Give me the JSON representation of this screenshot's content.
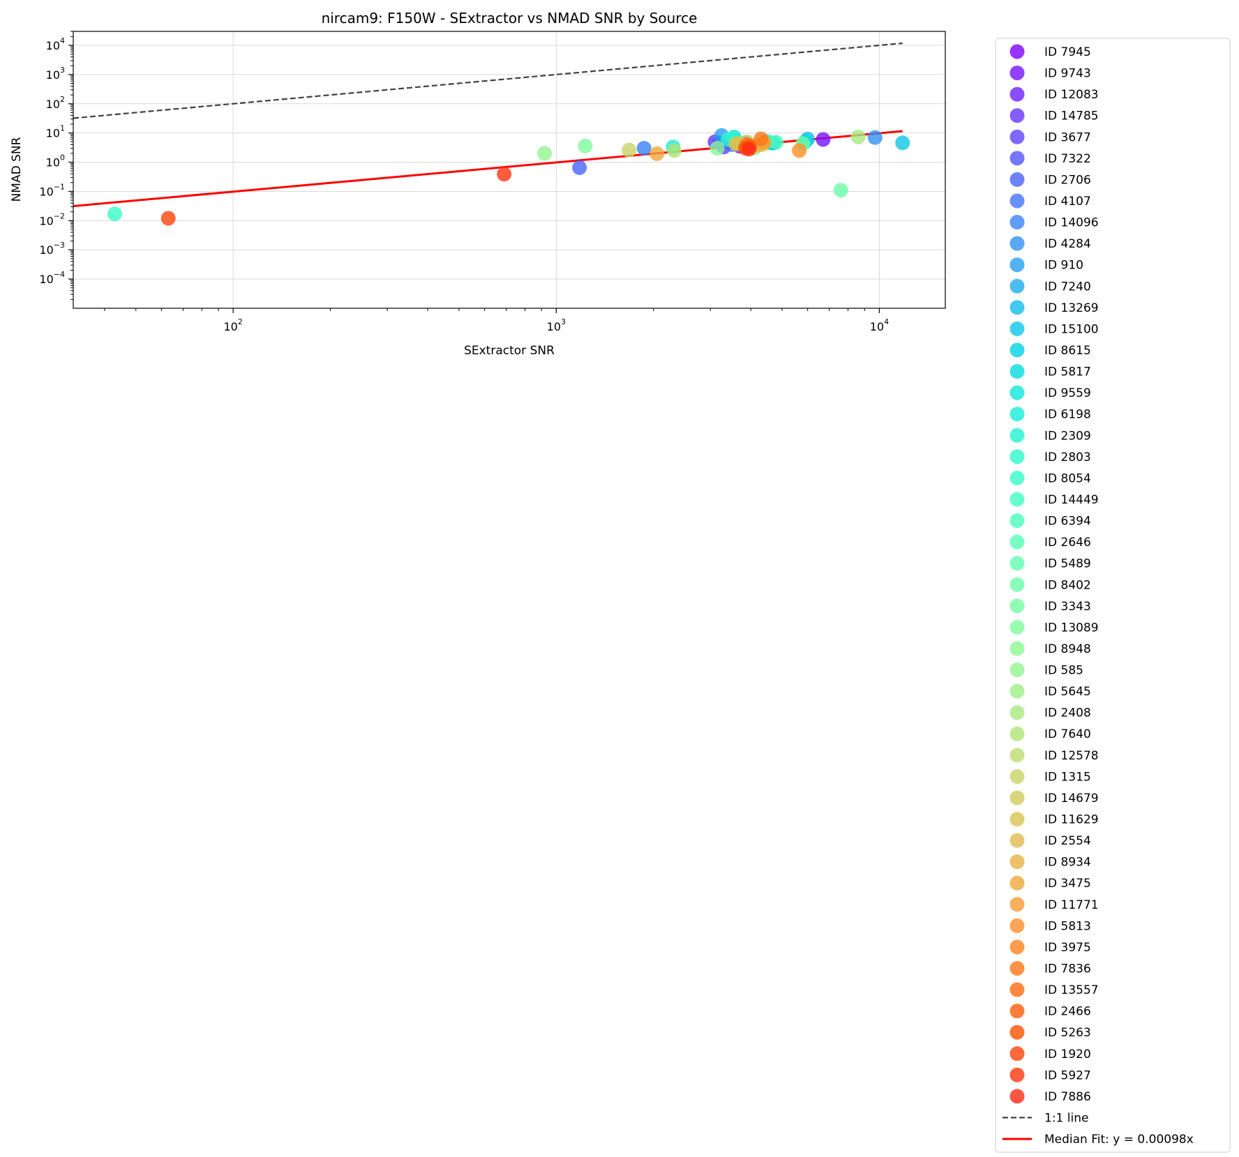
{
  "chart_data": {
    "type": "scatter",
    "title": "nircam9: F150W - SExtractor vs NMAD SNR by Source",
    "xlabel": "SExtractor SNR",
    "ylabel": "NMAD SNR",
    "x_scale": "log",
    "y_scale": "log",
    "xlim": [
      32,
      16000
    ],
    "ylim": [
      1e-05,
      30000
    ],
    "x_ticks": [
      {
        "value": 100,
        "base": "10",
        "exp": "2"
      },
      {
        "value": 1000,
        "base": "10",
        "exp": "3"
      },
      {
        "value": 10000,
        "base": "10",
        "exp": "4"
      }
    ],
    "y_ticks": [
      {
        "value": 0.0001,
        "base": "10",
        "exp": "−4"
      },
      {
        "value": 0.001,
        "base": "10",
        "exp": "−3"
      },
      {
        "value": 0.01,
        "base": "10",
        "exp": "−2"
      },
      {
        "value": 0.1,
        "base": "10",
        "exp": "−1"
      },
      {
        "value": 1,
        "base": "10",
        "exp": "0"
      },
      {
        "value": 10,
        "base": "10",
        "exp": "1"
      },
      {
        "value": 100,
        "base": "10",
        "exp": "2"
      },
      {
        "value": 1000,
        "base": "10",
        "exp": "3"
      },
      {
        "value": 10000,
        "base": "10",
        "exp": "4"
      }
    ],
    "grid": true,
    "legend_position": "outside right",
    "series": [
      {
        "name": "ID 7945",
        "color": "#8000ff",
        "x": 3850,
        "y": 4.5
      },
      {
        "name": "ID 9743",
        "color": "#7711ff",
        "x": 6700,
        "y": 6.0
      },
      {
        "name": "ID 12083",
        "color": "#6e22fe",
        "x": 3700,
        "y": 3.5
      },
      {
        "name": "ID 14785",
        "color": "#6633fe",
        "x": 3100,
        "y": 5.0
      },
      {
        "name": "ID 3677",
        "color": "#5c43fd",
        "x": 3300,
        "y": 3.3
      },
      {
        "name": "ID 7322",
        "color": "#5454fc",
        "x": 3200,
        "y": 4.5
      },
      {
        "name": "ID 2706",
        "color": "#4a63fa",
        "x": 1180,
        "y": 0.65
      },
      {
        "name": "ID 4107",
        "color": "#4373f9",
        "x": 3500,
        "y": 4.0
      },
      {
        "name": "ID 14096",
        "color": "#3982f6",
        "x": 1870,
        "y": 3.0
      },
      {
        "name": "ID 4284",
        "color": "#3191f4",
        "x": 9700,
        "y": 7.0
      },
      {
        "name": "ID 910",
        "color": "#279ff1",
        "x": 3250,
        "y": 8.2
      },
      {
        "name": "ID 7240",
        "color": "#1fadee",
        "x": 4700,
        "y": 4.5
      },
      {
        "name": "ID 13269",
        "color": "#14bbea",
        "x": 6000,
        "y": 6.2
      },
      {
        "name": "ID 15100",
        "color": "#0dc6e7",
        "x": 11800,
        "y": 4.6
      },
      {
        "name": "ID 8615",
        "color": "#03d2e3",
        "x": 4600,
        "y": 4.6
      },
      {
        "name": "ID 5817",
        "color": "#06dcdf",
        "x": 5900,
        "y": 5.0
      },
      {
        "name": "ID 9559",
        "color": "#0fe6db",
        "x": 3550,
        "y": 7.3
      },
      {
        "name": "ID 6198",
        "color": "#19ecd6",
        "x": 2300,
        "y": 3.3
      },
      {
        "name": "ID 2309",
        "color": "#23f3d1",
        "x": 3600,
        "y": 5.5
      },
      {
        "name": "ID 2803",
        "color": "#2df8cc",
        "x": 3400,
        "y": 6.0
      },
      {
        "name": "ID 8054",
        "color": "#37fbc7",
        "x": 43,
        "y": 0.017
      },
      {
        "name": "ID 14449",
        "color": "#41fdc1",
        "x": 4500,
        "y": 5.2
      },
      {
        "name": "ID 6394",
        "color": "#4bfebc",
        "x": 4800,
        "y": 4.8
      },
      {
        "name": "ID 2646",
        "color": "#56feb5",
        "x": 3700,
        "y": 4.4
      },
      {
        "name": "ID 5489",
        "color": "#60ffb0",
        "x": 3900,
        "y": 3.6
      },
      {
        "name": "ID 8402",
        "color": "#6afea9",
        "x": 7600,
        "y": 0.11
      },
      {
        "name": "ID 3343",
        "color": "#74fda2",
        "x": 5800,
        "y": 4.3
      },
      {
        "name": "ID 13089",
        "color": "#7ffb9c",
        "x": 1230,
        "y": 3.6
      },
      {
        "name": "ID 8948",
        "color": "#89f795",
        "x": 3150,
        "y": 3.0
      },
      {
        "name": "ID 585",
        "color": "#93f48e",
        "x": 920,
        "y": 2.0
      },
      {
        "name": "ID 5645",
        "color": "#9def86",
        "x": 4100,
        "y": 3.0
      },
      {
        "name": "ID 2408",
        "color": "#a7e97f",
        "x": 8600,
        "y": 7.3
      },
      {
        "name": "ID 7640",
        "color": "#b1e376",
        "x": 2320,
        "y": 2.5
      },
      {
        "name": "ID 12578",
        "color": "#bbdc6f",
        "x": 3900,
        "y": 5.0
      },
      {
        "name": "ID 1315",
        "color": "#c5d566",
        "x": 1680,
        "y": 2.6
      },
      {
        "name": "ID 14679",
        "color": "#cdcc5e",
        "x": 3600,
        "y": 4.2
      },
      {
        "name": "ID 11629",
        "color": "#d7c455",
        "x": 4350,
        "y": 4.0
      },
      {
        "name": "ID 2554",
        "color": "#dfba4d",
        "x": 3650,
        "y": 4.4
      },
      {
        "name": "ID 8934",
        "color": "#e8b044",
        "x": 4200,
        "y": 3.8
      },
      {
        "name": "ID 3475",
        "color": "#f0a63b",
        "x": 2050,
        "y": 1.95
      },
      {
        "name": "ID 11771",
        "color": "#f79b33",
        "x": 4400,
        "y": 4.8
      },
      {
        "name": "ID 5813",
        "color": "#ff8f29",
        "x": 5650,
        "y": 2.5
      },
      {
        "name": "ID 3975",
        "color": "#ff8321",
        "x": 4000,
        "y": 3.6
      },
      {
        "name": "ID 7836",
        "color": "#ff7718",
        "x": 4300,
        "y": 6.3
      },
      {
        "name": "ID 13557",
        "color": "#ff6a0f",
        "x": 3900,
        "y": 4.0
      },
      {
        "name": "ID 2466",
        "color": "#ff5d07",
        "x": 3950,
        "y": 3.3
      },
      {
        "name": "ID 5263",
        "color": "#ff5000",
        "x": 3850,
        "y": 3.0
      },
      {
        "name": "ID 1920",
        "color": "#ff4208",
        "x": 63,
        "y": 0.012
      },
      {
        "name": "ID 5927",
        "color": "#ff3410",
        "x": 690,
        "y": 0.39
      },
      {
        "name": "ID 7886",
        "color": "#ff2a18",
        "x": 3950,
        "y": 2.8
      }
    ],
    "lines": [
      {
        "name": "1:1 line",
        "color": "#404040",
        "style": "dashed",
        "x": [
          32,
          11800
        ],
        "y": [
          32,
          11800
        ]
      },
      {
        "name": "Median Fit: y = 0.00098x",
        "color": "#ff0000",
        "style": "solid",
        "x": [
          32,
          11800
        ],
        "y": [
          0.03136,
          11.564
        ]
      }
    ]
  }
}
